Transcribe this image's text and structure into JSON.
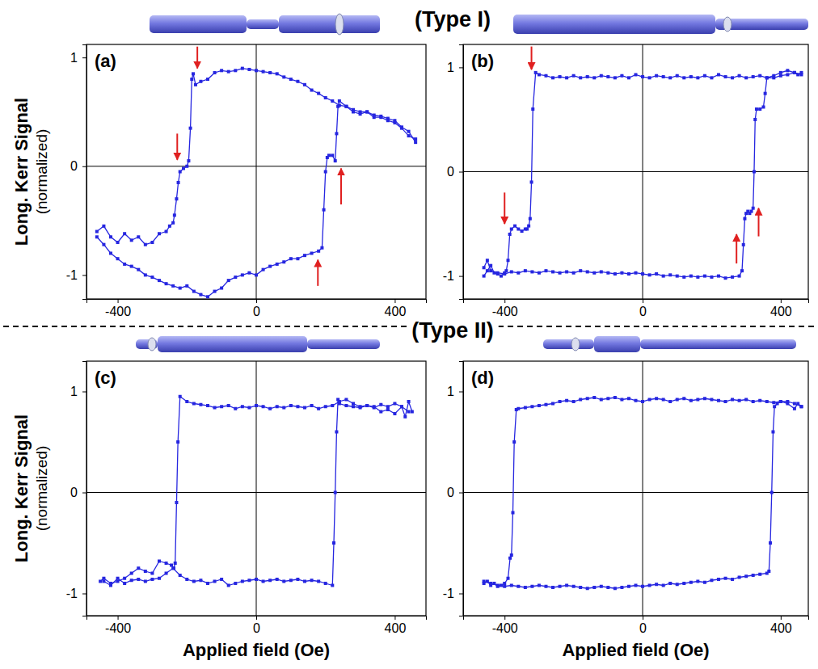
{
  "chart_data": [
    {
      "type": "line",
      "title": "(a)",
      "color": "#2626e0",
      "marker": "square",
      "line_style": "solid",
      "xlim": [
        -490,
        490
      ],
      "ylim": [
        -1.22,
        1.12
      ],
      "xticks": [
        -400,
        0,
        400
      ],
      "yticks": [
        -1,
        0,
        1
      ],
      "ylabel": [
        "Long. Kerr Signal",
        "(normalized)"
      ],
      "series": [
        {
          "x": [
            460,
            440,
            420,
            400,
            380,
            360,
            340,
            320,
            300,
            280,
            260,
            240,
            220,
            200,
            180,
            160,
            140,
            120,
            100,
            80,
            60,
            40,
            20,
            0,
            -20,
            -40,
            -60,
            -80,
            -100,
            -120,
            -140,
            -160,
            -175,
            -182,
            -186,
            -190,
            -195,
            -200,
            -210,
            -220,
            -225,
            -230,
            -236,
            -240,
            -250,
            -260,
            -280,
            -300,
            -320,
            -340,
            -360,
            -380,
            -400,
            -420,
            -440,
            -460
          ],
          "values": [
            0.22,
            0.32,
            0.36,
            0.42,
            0.44,
            0.46,
            0.47,
            0.5,
            0.5,
            0.52,
            0.55,
            0.56,
            0.6,
            0.63,
            0.67,
            0.7,
            0.75,
            0.78,
            0.8,
            0.82,
            0.85,
            0.86,
            0.87,
            0.88,
            0.89,
            0.9,
            0.88,
            0.87,
            0.88,
            0.86,
            0.8,
            0.78,
            0.75,
            0.85,
            0.8,
            0.35,
            0.05,
            0,
            -0.02,
            -0.05,
            -0.15,
            -0.3,
            -0.45,
            -0.52,
            -0.55,
            -0.6,
            -0.62,
            -0.7,
            -0.72,
            -0.65,
            -0.68,
            -0.62,
            -0.7,
            -0.65,
            -0.55,
            -0.6
          ]
        },
        {
          "x": [
            -460,
            -440,
            -420,
            -400,
            -380,
            -360,
            -340,
            -320,
            -300,
            -280,
            -260,
            -240,
            -220,
            -200,
            -180,
            -160,
            -140,
            -120,
            -100,
            -80,
            -60,
            -40,
            -20,
            0,
            20,
            40,
            60,
            80,
            100,
            120,
            140,
            160,
            180,
            190,
            195,
            200,
            205,
            210,
            220,
            228,
            232,
            236,
            240,
            260,
            280,
            300,
            320,
            340,
            360,
            380,
            400,
            420,
            440,
            460
          ],
          "values": [
            -0.65,
            -0.72,
            -0.8,
            -0.85,
            -0.9,
            -0.92,
            -0.95,
            -1.0,
            -1.02,
            -1.05,
            -1.08,
            -1.1,
            -1.12,
            -1.1,
            -1.15,
            -1.18,
            -1.2,
            -1.15,
            -1.12,
            -1.05,
            -1.02,
            -1.0,
            -0.98,
            -1.0,
            -0.95,
            -0.92,
            -0.9,
            -0.88,
            -0.85,
            -0.85,
            -0.82,
            -0.8,
            -0.78,
            -0.75,
            -0.4,
            -0.05,
            0.08,
            0.1,
            0.1,
            0.05,
            0.3,
            0.55,
            0.6,
            0.55,
            0.5,
            0.48,
            0.5,
            0.45,
            0.45,
            0.42,
            0.4,
            0.35,
            0.28,
            0.25
          ]
        }
      ],
      "arrows": [
        {
          "x": -170,
          "y_from": 1.1,
          "y_to": 0.9,
          "color": "#e02020"
        },
        {
          "x": -228,
          "y_from": 0.3,
          "y_to": 0.06,
          "color": "#e02020"
        },
        {
          "x": 245,
          "y_from": -0.35,
          "y_to": -0.02,
          "color": "#e02020"
        },
        {
          "x": 178,
          "y_from": -1.1,
          "y_to": -0.86,
          "color": "#e02020"
        }
      ]
    },
    {
      "type": "line",
      "title": "(b)",
      "color": "#2626e0",
      "marker": "square",
      "line_style": "solid",
      "xlim": [
        -520,
        480
      ],
      "ylim": [
        -1.22,
        1.22
      ],
      "xticks": [
        -400,
        0,
        400
      ],
      "yticks": [
        -1,
        0,
        1
      ],
      "series": [
        {
          "x": [
            460,
            450,
            440,
            420,
            400,
            380,
            360,
            340,
            320,
            300,
            280,
            260,
            240,
            220,
            200,
            180,
            160,
            140,
            120,
            100,
            80,
            60,
            40,
            20,
            0,
            -20,
            -40,
            -60,
            -80,
            -100,
            -120,
            -140,
            -160,
            -180,
            -200,
            -220,
            -240,
            -260,
            -280,
            -300,
            -310,
            -318,
            -322,
            -326,
            -330,
            -335,
            -340,
            -350,
            -360,
            -370,
            -380,
            -385,
            -390,
            -395,
            -400,
            -410,
            -420,
            -430,
            -440,
            -450,
            -460
          ],
          "values": [
            0.95,
            0.93,
            0.95,
            0.93,
            0.92,
            0.9,
            0.9,
            0.92,
            0.91,
            0.9,
            0.92,
            0.9,
            0.91,
            0.93,
            0.9,
            0.92,
            0.9,
            0.91,
            0.9,
            0.92,
            0.9,
            0.91,
            0.92,
            0.9,
            0.91,
            0.93,
            0.9,
            0.92,
            0.9,
            0.91,
            0.92,
            0.9,
            0.91,
            0.9,
            0.92,
            0.9,
            0.91,
            0.9,
            0.92,
            0.93,
            0.95,
            0.6,
            -0.1,
            -0.45,
            -0.52,
            -0.55,
            -0.55,
            -0.57,
            -0.55,
            -0.52,
            -0.55,
            -0.6,
            -0.85,
            -0.95,
            -0.97,
            -1.0,
            -0.98,
            -0.97,
            -0.9,
            -0.95,
            -1.0
          ]
        },
        {
          "x": [
            -460,
            -450,
            -440,
            -420,
            -400,
            -380,
            -360,
            -340,
            -320,
            -300,
            -280,
            -260,
            -240,
            -220,
            -200,
            -180,
            -160,
            -140,
            -120,
            -100,
            -80,
            -60,
            -40,
            -20,
            0,
            20,
            40,
            60,
            80,
            100,
            120,
            140,
            160,
            180,
            200,
            220,
            240,
            260,
            280,
            288,
            292,
            296,
            300,
            305,
            310,
            315,
            320,
            323,
            326,
            330,
            340,
            350,
            355,
            360,
            380,
            400,
            420,
            440,
            460
          ],
          "values": [
            -0.92,
            -0.85,
            -0.95,
            -0.97,
            -0.98,
            -0.96,
            -0.97,
            -0.95,
            -0.96,
            -0.97,
            -0.95,
            -0.96,
            -0.97,
            -0.96,
            -0.97,
            -0.95,
            -0.96,
            -0.97,
            -0.96,
            -0.97,
            -0.98,
            -0.97,
            -0.98,
            -0.97,
            -0.98,
            -0.99,
            -0.98,
            -1.0,
            -0.99,
            -1.0,
            -1.01,
            -1.0,
            -1.01,
            -1.0,
            -1.01,
            -1.0,
            -1.02,
            -1.01,
            -1.0,
            -0.95,
            -0.7,
            -0.45,
            -0.4,
            -0.38,
            -0.4,
            -0.38,
            -0.35,
            0,
            0.5,
            0.6,
            0.6,
            0.62,
            0.75,
            0.9,
            0.92,
            0.95,
            0.97,
            0.95,
            0.93
          ]
        }
      ],
      "arrows": [
        {
          "x": -322,
          "y_from": 1.2,
          "y_to": 0.98,
          "color": "#e02020"
        },
        {
          "x": -400,
          "y_from": -0.2,
          "y_to": -0.5,
          "color": "#e02020"
        },
        {
          "x": 272,
          "y_from": -0.88,
          "y_to": -0.6,
          "color": "#e02020"
        },
        {
          "x": 336,
          "y_from": -0.62,
          "y_to": -0.35,
          "color": "#e02020"
        }
      ]
    },
    {
      "type": "line",
      "title": "(c)",
      "color": "#2626e0",
      "marker": "square",
      "line_style": "solid",
      "xlim": [
        -490,
        490
      ],
      "ylim": [
        -1.22,
        1.3
      ],
      "xticks": [
        -400,
        0,
        400
      ],
      "yticks": [
        -1,
        0,
        1
      ],
      "ylabel": [
        "Long. Kerr Signal",
        "(normalized)"
      ],
      "xlabel": "Applied field (Oe)",
      "series": [
        {
          "x": [
            450,
            440,
            430,
            420,
            400,
            380,
            360,
            340,
            320,
            300,
            280,
            260,
            240,
            220,
            200,
            180,
            160,
            140,
            120,
            100,
            80,
            60,
            40,
            20,
            0,
            -20,
            -40,
            -60,
            -80,
            -100,
            -120,
            -140,
            -160,
            -180,
            -200,
            -220,
            -226,
            -230,
            -234,
            -238,
            -245,
            -260,
            -280,
            -300,
            -320,
            -340,
            -360,
            -380,
            -400,
            -420,
            -440,
            -450
          ],
          "values": [
            0.8,
            0.9,
            0.75,
            0.85,
            0.88,
            0.85,
            0.87,
            0.84,
            0.86,
            0.85,
            0.88,
            0.92,
            0.9,
            0.86,
            0.85,
            0.83,
            0.86,
            0.84,
            0.85,
            0.86,
            0.84,
            0.85,
            0.83,
            0.85,
            0.86,
            0.84,
            0.85,
            0.83,
            0.86,
            0.85,
            0.84,
            0.86,
            0.87,
            0.88,
            0.9,
            0.95,
            0.5,
            -0.1,
            -0.7,
            -0.75,
            -0.72,
            -0.7,
            -0.68,
            -0.8,
            -0.78,
            -0.75,
            -0.8,
            -0.85,
            -0.88,
            -0.9,
            -0.85,
            -0.88
          ]
        },
        {
          "x": [
            -440,
            -420,
            -400,
            -380,
            -360,
            -340,
            -320,
            -300,
            -280,
            -260,
            -240,
            -220,
            -200,
            -180,
            -160,
            -140,
            -120,
            -100,
            -80,
            -60,
            -40,
            -20,
            0,
            20,
            40,
            60,
            80,
            100,
            120,
            140,
            160,
            180,
            200,
            220,
            224,
            228,
            232,
            236,
            240,
            260,
            280,
            300,
            320,
            340,
            360,
            380,
            400,
            420,
            440
          ],
          "values": [
            -0.88,
            -0.92,
            -0.85,
            -0.9,
            -0.87,
            -0.86,
            -0.88,
            -0.86,
            -0.85,
            -0.8,
            -0.75,
            -0.82,
            -0.86,
            -0.88,
            -0.87,
            -0.9,
            -0.88,
            -0.86,
            -0.92,
            -0.9,
            -0.88,
            -0.87,
            -0.86,
            -0.88,
            -0.87,
            -0.86,
            -0.88,
            -0.87,
            -0.86,
            -0.88,
            -0.87,
            -0.88,
            -0.9,
            -0.92,
            -0.5,
            0,
            0.6,
            0.92,
            0.88,
            0.86,
            0.85,
            0.84,
            0.86,
            0.85,
            0.8,
            0.82,
            0.78,
            0.85,
            0.8
          ]
        }
      ]
    },
    {
      "type": "line",
      "title": "(d)",
      "color": "#2626e0",
      "marker": "square",
      "line_style": "solid",
      "xlim": [
        -520,
        480
      ],
      "ylim": [
        -1.22,
        1.3
      ],
      "xticks": [
        -400,
        0,
        400
      ],
      "yticks": [
        -1,
        0,
        1
      ],
      "xlabel": "Applied field (Oe)",
      "series": [
        {
          "x": [
            460,
            450,
            440,
            420,
            400,
            380,
            360,
            340,
            320,
            300,
            280,
            260,
            240,
            220,
            200,
            180,
            160,
            140,
            120,
            100,
            80,
            60,
            40,
            20,
            0,
            -20,
            -40,
            -60,
            -80,
            -100,
            -120,
            -140,
            -160,
            -180,
            -200,
            -220,
            -240,
            -260,
            -280,
            -300,
            -320,
            -340,
            -360,
            -366,
            -372,
            -376,
            -380,
            -384,
            -390,
            -400,
            -410,
            -420,
            -430,
            -440,
            -450,
            -460
          ],
          "values": [
            0.85,
            0.88,
            0.83,
            0.88,
            0.9,
            0.89,
            0.9,
            0.91,
            0.9,
            0.92,
            0.91,
            0.92,
            0.9,
            0.91,
            0.92,
            0.93,
            0.92,
            0.91,
            0.93,
            0.92,
            0.9,
            0.92,
            0.93,
            0.92,
            0.9,
            0.91,
            0.93,
            0.92,
            0.94,
            0.93,
            0.92,
            0.94,
            0.93,
            0.92,
            0.9,
            0.91,
            0.9,
            0.88,
            0.87,
            0.86,
            0.85,
            0.84,
            0.83,
            0.82,
            0.5,
            -0.2,
            -0.62,
            -0.65,
            -0.85,
            -0.9,
            -0.92,
            -0.93,
            -0.9,
            -0.92,
            -0.88,
            -0.9
          ]
        },
        {
          "x": [
            -460,
            -440,
            -420,
            -400,
            -380,
            -360,
            -340,
            -320,
            -300,
            -280,
            -260,
            -240,
            -220,
            -200,
            -180,
            -160,
            -140,
            -120,
            -100,
            -80,
            -60,
            -40,
            -20,
            0,
            20,
            40,
            60,
            80,
            100,
            120,
            140,
            160,
            180,
            200,
            220,
            240,
            260,
            280,
            300,
            320,
            340,
            360,
            366,
            370,
            374,
            378,
            382,
            390,
            400,
            420,
            440,
            460
          ],
          "values": [
            -0.88,
            -0.9,
            -0.92,
            -0.93,
            -0.92,
            -0.93,
            -0.94,
            -0.93,
            -0.92,
            -0.93,
            -0.94,
            -0.93,
            -0.92,
            -0.93,
            -0.94,
            -0.95,
            -0.94,
            -0.93,
            -0.94,
            -0.95,
            -0.94,
            -0.93,
            -0.92,
            -0.93,
            -0.92,
            -0.91,
            -0.92,
            -0.9,
            -0.91,
            -0.9,
            -0.89,
            -0.88,
            -0.89,
            -0.87,
            -0.86,
            -0.85,
            -0.86,
            -0.84,
            -0.83,
            -0.82,
            -0.81,
            -0.8,
            -0.78,
            -0.5,
            0,
            0.6,
            0.85,
            0.88,
            0.9,
            0.9,
            0.88,
            0.85
          ]
        }
      ]
    }
  ],
  "groups": [
    {
      "title": "(Type I)"
    },
    {
      "title": "(Type II)"
    }
  ]
}
